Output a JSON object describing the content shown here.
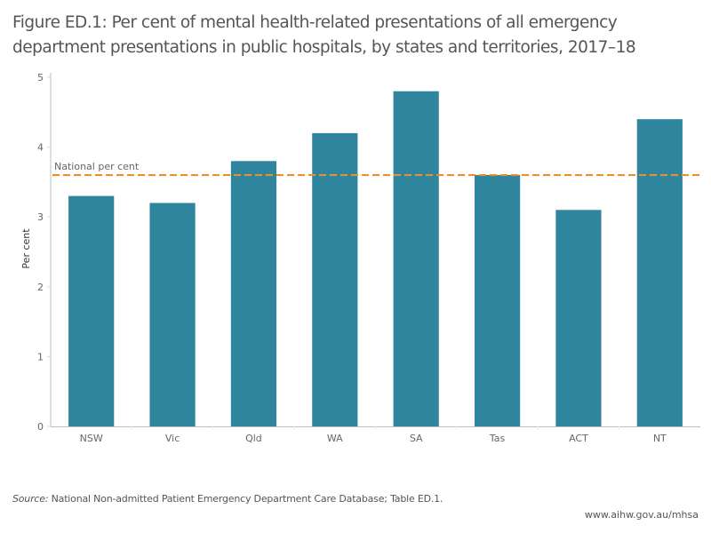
{
  "header": {
    "title": "Figure ED.1: Per cent of mental health-related presentations of all emergency department presentations in public hospitals, by states and territories, 2017–18"
  },
  "chart_data": {
    "type": "bar",
    "title": "Figure ED.1: Per cent of mental health-related presentations of all emergency department presentations in public hospitals, by states and territories, 2017–18",
    "xlabel": "",
    "ylabel": "Per cent",
    "categories": [
      "NSW",
      "Vic",
      "Qld",
      "WA",
      "SA",
      "Tas",
      "ACT",
      "NT"
    ],
    "values": [
      3.3,
      3.2,
      3.8,
      4.2,
      4.8,
      3.6,
      3.1,
      4.4
    ],
    "ylim": [
      0,
      5
    ],
    "yticks": [
      0,
      1,
      2,
      3,
      4,
      5
    ],
    "grid": false,
    "bar_color": "#2f849e",
    "reference_line": {
      "label": "National per cent",
      "value": 3.6,
      "color": "#e8912c",
      "style": "dashed"
    }
  },
  "footer": {
    "source_label": "Source:",
    "source_text": " National Non-admitted Patient Emergency Department Care Database; Table ED.1.",
    "url": "www.aihw.gov.au/mhsa"
  }
}
